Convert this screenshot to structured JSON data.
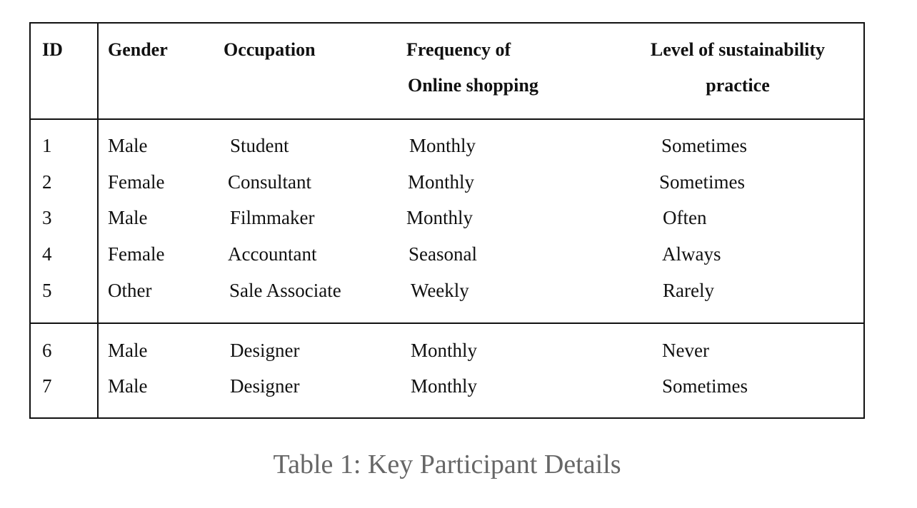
{
  "table": {
    "headers": {
      "id": "ID",
      "gender": "Gender",
      "occupation": "Occupation",
      "frequency_line1": "Frequency of",
      "frequency_line2": "Online shopping",
      "sustainability_line1": "Level of sustainability",
      "sustainability_line2": "practice"
    },
    "rows": [
      {
        "id": "1",
        "gender": "Male",
        "occupation": "Student",
        "frequency": "Monthly",
        "sustainability": "Sometimes"
      },
      {
        "id": "2",
        "gender": "Female",
        "occupation": "Consultant",
        "frequency": "Monthly",
        "sustainability": "Sometimes"
      },
      {
        "id": "3",
        "gender": "Male",
        "occupation": "Filmmaker",
        "frequency": "Monthly",
        "sustainability": "Often"
      },
      {
        "id": "4",
        "gender": "Female",
        "occupation": "Accountant",
        "frequency": "Seasonal",
        "sustainability": "Always"
      },
      {
        "id": "5",
        "gender": "Other",
        "occupation": "Sale Associate",
        "frequency": "Weekly",
        "sustainability": "Rarely"
      },
      {
        "id": "6",
        "gender": "Male",
        "occupation": "Designer",
        "frequency": "Monthly",
        "sustainability": "Never"
      },
      {
        "id": "7",
        "gender": "Male",
        "occupation": "Designer",
        "frequency": "Monthly",
        "sustainability": "Sometimes"
      }
    ]
  },
  "caption": "Table 1: Key Participant Details"
}
